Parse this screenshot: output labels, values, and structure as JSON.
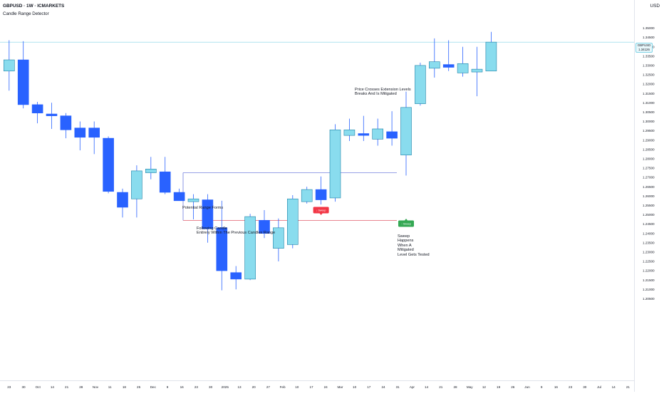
{
  "header": {
    "symbol": "GBPUSD · 1W · ICMARKETS",
    "indicator": "Candle Range Detector",
    "currency": "USD"
  },
  "last_price": {
    "symbol": "GBPUSD",
    "value": "1.34126",
    "countdown": "2d 4h"
  },
  "annotations": {
    "range_forms": "Potential Range Forms",
    "following_candle_1": "Following Candle",
    "following_candle_2": "Entirely Within The Previous Candles Range",
    "price_crosses_1": "Price Crosses Extension Levels",
    "price_crosses_2": "Breaks And Is Mitigated",
    "sweep_1": "Sweep",
    "sweep_2": "Happens",
    "sweep_3": "When A",
    "sweep_4": "Mitigated",
    "sweep_5": "Level Gets Tested",
    "badge_red": "↓ Sweep",
    "badge_green": "↑ Sweep"
  },
  "chart_data": {
    "type": "candlestick",
    "title": "GBPUSD · 1W · ICMARKETS",
    "xlabel": "",
    "ylabel": "",
    "ylim": [
      1.199,
      1.3575
    ],
    "grid": false,
    "colors": {
      "bull_fill": "#89dcee",
      "bull_border": "#1e82a8",
      "bear_fill": "#2962ff",
      "bear_border": "#2962ff",
      "wick": "#2962ff",
      "upper_level": "#5b6bd8",
      "lower_level": "#e05c6a",
      "badge_red": "#f23645",
      "badge_green": "#34a853",
      "last_price_line": "#7fd3e6"
    },
    "price_ticks": [
      "1.35000",
      "1.34500",
      "1.34000",
      "1.33500",
      "1.33000",
      "1.32500",
      "1.32000",
      "1.31500",
      "1.31000",
      "1.30500",
      "1.30000",
      "1.29500",
      "1.29000",
      "1.28500",
      "1.28000",
      "1.27500",
      "1.27000",
      "1.26500",
      "1.26000",
      "1.25500",
      "1.25000",
      "1.24500",
      "1.24000",
      "1.23500",
      "1.23000",
      "1.22500",
      "1.22000",
      "1.21500",
      "1.21000",
      "1.20500"
    ],
    "time_ticks": [
      "23",
      "30",
      "Oct",
      "14",
      "21",
      "28",
      "Nov",
      "11",
      "18",
      "25",
      "Dec",
      "9",
      "16",
      "23",
      "30",
      "2025",
      "13",
      "20",
      "27",
      "Feb",
      "10",
      "17",
      "24",
      "Mar",
      "10",
      "17",
      "24",
      "31",
      "Apr",
      "14",
      "21",
      "28",
      "May",
      "12",
      "19",
      "26",
      "Jun",
      "9",
      "16",
      "23",
      "30",
      "Jul",
      "14",
      "21"
    ],
    "candles": [
      {
        "o": 1.327,
        "h": 1.3435,
        "l": 1.3165,
        "c": 1.333
      },
      {
        "o": 1.333,
        "h": 1.343,
        "l": 1.307,
        "c": 1.309
      },
      {
        "o": 1.309,
        "h": 1.3105,
        "l": 1.299,
        "c": 1.3045
      },
      {
        "o": 1.304,
        "h": 1.31,
        "l": 1.296,
        "c": 1.303
      },
      {
        "o": 1.303,
        "h": 1.3045,
        "l": 1.291,
        "c": 1.2955
      },
      {
        "o": 1.2965,
        "h": 1.3,
        "l": 1.2845,
        "c": 1.2915
      },
      {
        "o": 1.2965,
        "h": 1.3,
        "l": 1.2825,
        "c": 1.2915
      },
      {
        "o": 1.291,
        "h": 1.292,
        "l": 1.2615,
        "c": 1.2625
      },
      {
        "o": 1.262,
        "h": 1.264,
        "l": 1.2485,
        "c": 1.254
      },
      {
        "o": 1.2585,
        "h": 1.2765,
        "l": 1.2485,
        "c": 1.2735
      },
      {
        "o": 1.2725,
        "h": 1.281,
        "l": 1.269,
        "c": 1.2745
      },
      {
        "o": 1.273,
        "h": 1.281,
        "l": 1.261,
        "c": 1.262
      },
      {
        "o": 1.262,
        "h": 1.264,
        "l": 1.2575,
        "c": 1.2575
      },
      {
        "o": 1.257,
        "h": 1.261,
        "l": 1.2475,
        "c": 1.2585
      },
      {
        "o": 1.258,
        "h": 1.261,
        "l": 1.235,
        "c": 1.2425
      },
      {
        "o": 1.243,
        "h": 1.2575,
        "l": 1.2095,
        "c": 1.22
      },
      {
        "o": 1.219,
        "h": 1.2225,
        "l": 1.21,
        "c": 1.2155
      },
      {
        "o": 1.2155,
        "h": 1.2505,
        "l": 1.215,
        "c": 1.249
      },
      {
        "o": 1.247,
        "h": 1.2525,
        "l": 1.2375,
        "c": 1.24
      },
      {
        "o": 1.232,
        "h": 1.248,
        "l": 1.225,
        "c": 1.243
      },
      {
        "o": 1.234,
        "h": 1.2605,
        "l": 1.232,
        "c": 1.2585
      },
      {
        "o": 1.257,
        "h": 1.265,
        "l": 1.256,
        "c": 1.2635
      },
      {
        "o": 1.2635,
        "h": 1.2705,
        "l": 1.2555,
        "c": 1.258
      },
      {
        "o": 1.259,
        "h": 1.2985,
        "l": 1.257,
        "c": 1.2955
      },
      {
        "o": 1.2925,
        "h": 1.3015,
        "l": 1.2895,
        "c": 1.2955
      },
      {
        "o": 1.2935,
        "h": 1.303,
        "l": 1.2895,
        "c": 1.2925
      },
      {
        "o": 1.2905,
        "h": 1.3015,
        "l": 1.287,
        "c": 1.296
      },
      {
        "o": 1.2945,
        "h": 1.3055,
        "l": 1.287,
        "c": 1.291
      },
      {
        "o": 1.282,
        "h": 1.316,
        "l": 1.271,
        "c": 1.3075
      },
      {
        "o": 1.3095,
        "h": 1.3315,
        "l": 1.3085,
        "c": 1.33
      },
      {
        "o": 1.3285,
        "h": 1.3445,
        "l": 1.3235,
        "c": 1.332
      },
      {
        "o": 1.3305,
        "h": 1.3435,
        "l": 1.327,
        "c": 1.329
      },
      {
        "o": 1.326,
        "h": 1.34,
        "l": 1.324,
        "c": 1.331
      },
      {
        "o": 1.3265,
        "h": 1.34,
        "l": 1.3135,
        "c": 1.328
      },
      {
        "o": 1.327,
        "h": 1.348,
        "l": 1.327,
        "c": 1.3425
      }
    ],
    "levels": {
      "range_high": 1.2725,
      "range_low": 1.247
    }
  }
}
